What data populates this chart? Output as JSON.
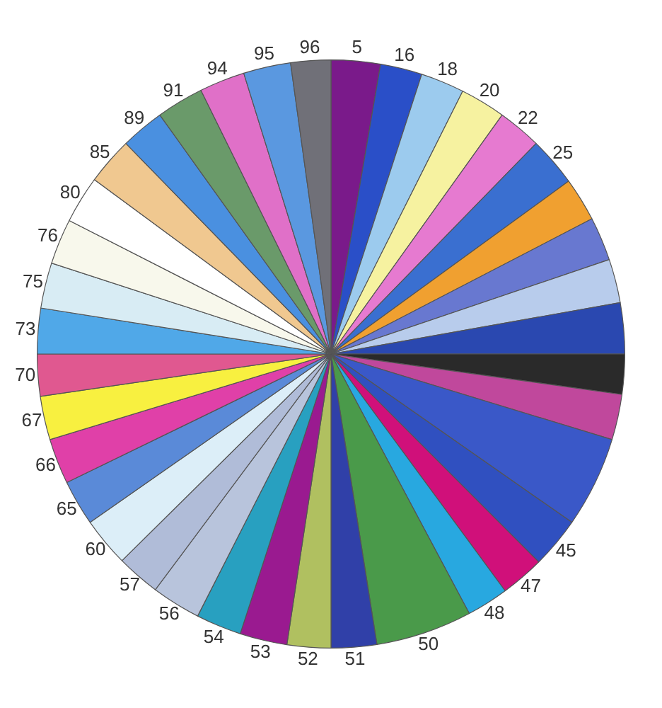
{
  "chart_data": {
    "type": "pie",
    "categories": [
      "5",
      "16",
      "18",
      "20",
      "22",
      "25",
      null,
      null,
      null,
      null,
      null,
      null,
      null,
      "45",
      "47",
      "48",
      "50",
      "51",
      "52",
      "53",
      "54",
      "56",
      "57",
      "60",
      "65",
      "66",
      "67",
      "70",
      "73",
      "75",
      "76",
      "80",
      "85",
      "89",
      "91",
      "94",
      "95",
      "96"
    ],
    "values": [
      2.7,
      2.3,
      2.4,
      2.5,
      2.4,
      2.7,
      2.4,
      2.4,
      2.4,
      2.8,
      2.2,
      2.5,
      5.0,
      2.8,
      2.4,
      2.3,
      5.3,
      2.5,
      2.4,
      2.6,
      2.5,
      2.7,
      2.4,
      2.7,
      2.5,
      2.5,
      2.4,
      2.3,
      2.5,
      2.5,
      2.5,
      2.6,
      2.6,
      2.4,
      2.6,
      2.5,
      2.6,
      2.2
    ],
    "colors": [
      "#7a1a8a",
      "#2a4fc8",
      "#9ccbee",
      "#f6f2a0",
      "#e67ad0",
      "#3a6fd0",
      "#f0a030",
      "#6878d0",
      "#b8ccec",
      "#2a48b0",
      "#2a2a2a",
      "#c0489c",
      "#3a58c8",
      "#3050c0",
      "#d0107a",
      "#28a8e0",
      "#4a9a4a",
      "#3040a8",
      "#b0c060",
      "#9a1a90",
      "#28a0c0",
      "#b8c4dc",
      "#b0bcd8",
      "#dceef8",
      "#5a8ad8",
      "#e040a8",
      "#f8f040",
      "#e05890",
      "#50a8e8",
      "#d8ecf4",
      "#f8f8ec",
      "#ffffff",
      "#f0c890",
      "#4a90e0",
      "#6a9a6a",
      "#e070c8",
      "#5a98e0",
      "#707078"
    ],
    "legend": false
  }
}
